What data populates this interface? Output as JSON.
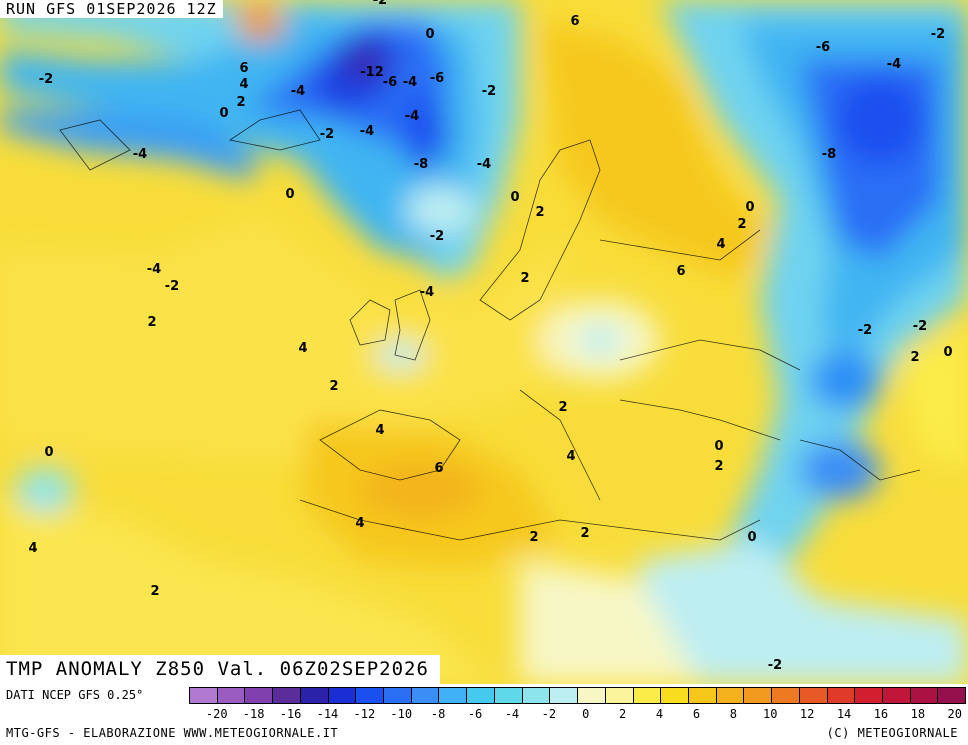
{
  "header": {
    "run_title": "RUN GFS 01SEP2026 12Z"
  },
  "map": {
    "field_title": "TMP ANOMALY Z850 Val. 06Z02SEP2026",
    "contour_labels": [
      "-2",
      "0",
      "-2",
      "6",
      "4",
      "0",
      "2",
      "-12",
      "-6",
      "-4",
      "-6",
      "-2",
      "-4",
      "-4",
      "-2",
      "-4",
      "-8",
      "-4",
      "0",
      "2",
      "-2",
      "-4",
      "-2",
      "0",
      "2",
      "4",
      "6",
      "-6",
      "-4",
      "-8",
      "0",
      "2",
      "4",
      "-2",
      "-4",
      "-2",
      "2",
      "4",
      "2",
      "2",
      "4",
      "6",
      "0",
      "2",
      "4",
      "0",
      "4",
      "2",
      "2",
      "0",
      "-2",
      "2",
      "0",
      "2",
      "-4",
      "-2",
      "6"
    ]
  },
  "legend": {
    "source_label": "DATI NCEP GFS 0.25°",
    "scale_colors": [
      "#b07ad0",
      "#9a5cc0",
      "#8040ad",
      "#5a2d9a",
      "#2a22a8",
      "#1a2ed6",
      "#1a4ff0",
      "#2a6ef6",
      "#3a8ef6",
      "#3fb0f3",
      "#45c9ee",
      "#5fd8ea",
      "#8ee4ec",
      "#bdeef2",
      "#f7f7c6",
      "#fbf49a",
      "#fbec4a",
      "#f8dd1e",
      "#f6c81a",
      "#f3b21b",
      "#ef9a1f",
      "#ec7a22",
      "#e85a25",
      "#e03a2a",
      "#d21f30",
      "#c0163a",
      "#ab1244",
      "#96104e"
    ],
    "scale_labels": [
      "-20",
      "-18",
      "-16",
      "-14",
      "-12",
      "-10",
      "-8",
      "-6",
      "-4",
      "-2",
      "0",
      "2",
      "4",
      "6",
      "8",
      "10",
      "12",
      "14",
      "16",
      "18",
      "20"
    ],
    "credit_left": "MTG-GFS - ELABORAZIONE WWW.METEOGIORNALE.IT",
    "credit_right": "(C) METEOGIORNALE"
  }
}
